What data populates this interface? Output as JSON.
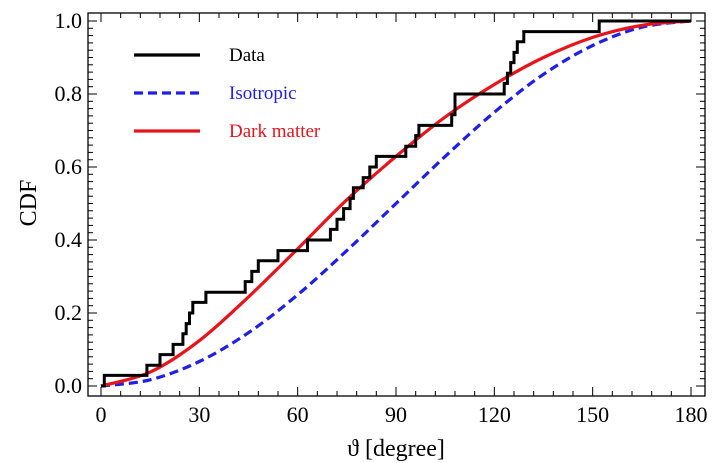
{
  "chart_data": {
    "type": "line",
    "xlabel": "ϑ [degree]",
    "ylabel": "CDF",
    "xlim": [
      0,
      180
    ],
    "ylim": [
      0,
      1
    ],
    "x_ticks": [
      "0",
      "30",
      "60",
      "90",
      "120",
      "150",
      "180"
    ],
    "y_ticks": [
      "0.0",
      "0.2",
      "0.4",
      "0.6",
      "0.8",
      "1.0"
    ],
    "grid": false,
    "legend_position": "top-left",
    "series": [
      {
        "name": "Data",
        "style": "step",
        "color": "#000000",
        "x": [
          0,
          1,
          14,
          18,
          22,
          25,
          26,
          27,
          28,
          32,
          44,
          46,
          48,
          54,
          63,
          70,
          72,
          74,
          76,
          77,
          80,
          82,
          84,
          93,
          96,
          97,
          107,
          108,
          123,
          124,
          125,
          126,
          127,
          129,
          143,
          152,
          162,
          180
        ],
        "y": [
          0,
          0.029,
          0.057,
          0.086,
          0.114,
          0.143,
          0.171,
          0.2,
          0.229,
          0.257,
          0.286,
          0.314,
          0.343,
          0.371,
          0.4,
          0.429,
          0.457,
          0.486,
          0.514,
          0.543,
          0.571,
          0.6,
          0.629,
          0.657,
          0.686,
          0.714,
          0.743,
          0.8,
          0.829,
          0.857,
          0.886,
          0.914,
          0.943,
          0.971,
          0.971,
          1.0,
          1.0,
          1.0
        ]
      },
      {
        "name": "Isotropic",
        "style": "dashed",
        "color": "#1f1fe6",
        "x": [
          0,
          15,
          30,
          45,
          60,
          75,
          90,
          105,
          120,
          135,
          150,
          165,
          180
        ],
        "y": [
          0,
          0.017,
          0.067,
          0.146,
          0.25,
          0.371,
          0.5,
          0.629,
          0.75,
          0.854,
          0.933,
          0.983,
          1.0
        ]
      },
      {
        "name": "Dark matter",
        "style": "solid",
        "color": "#e8141c",
        "x": [
          0,
          15,
          30,
          45,
          60,
          75,
          90,
          105,
          120,
          135,
          150,
          165,
          180
        ],
        "y": [
          0,
          0.038,
          0.124,
          0.244,
          0.376,
          0.51,
          0.629,
          0.737,
          0.826,
          0.9,
          0.955,
          0.988,
          1.0
        ]
      }
    ]
  }
}
